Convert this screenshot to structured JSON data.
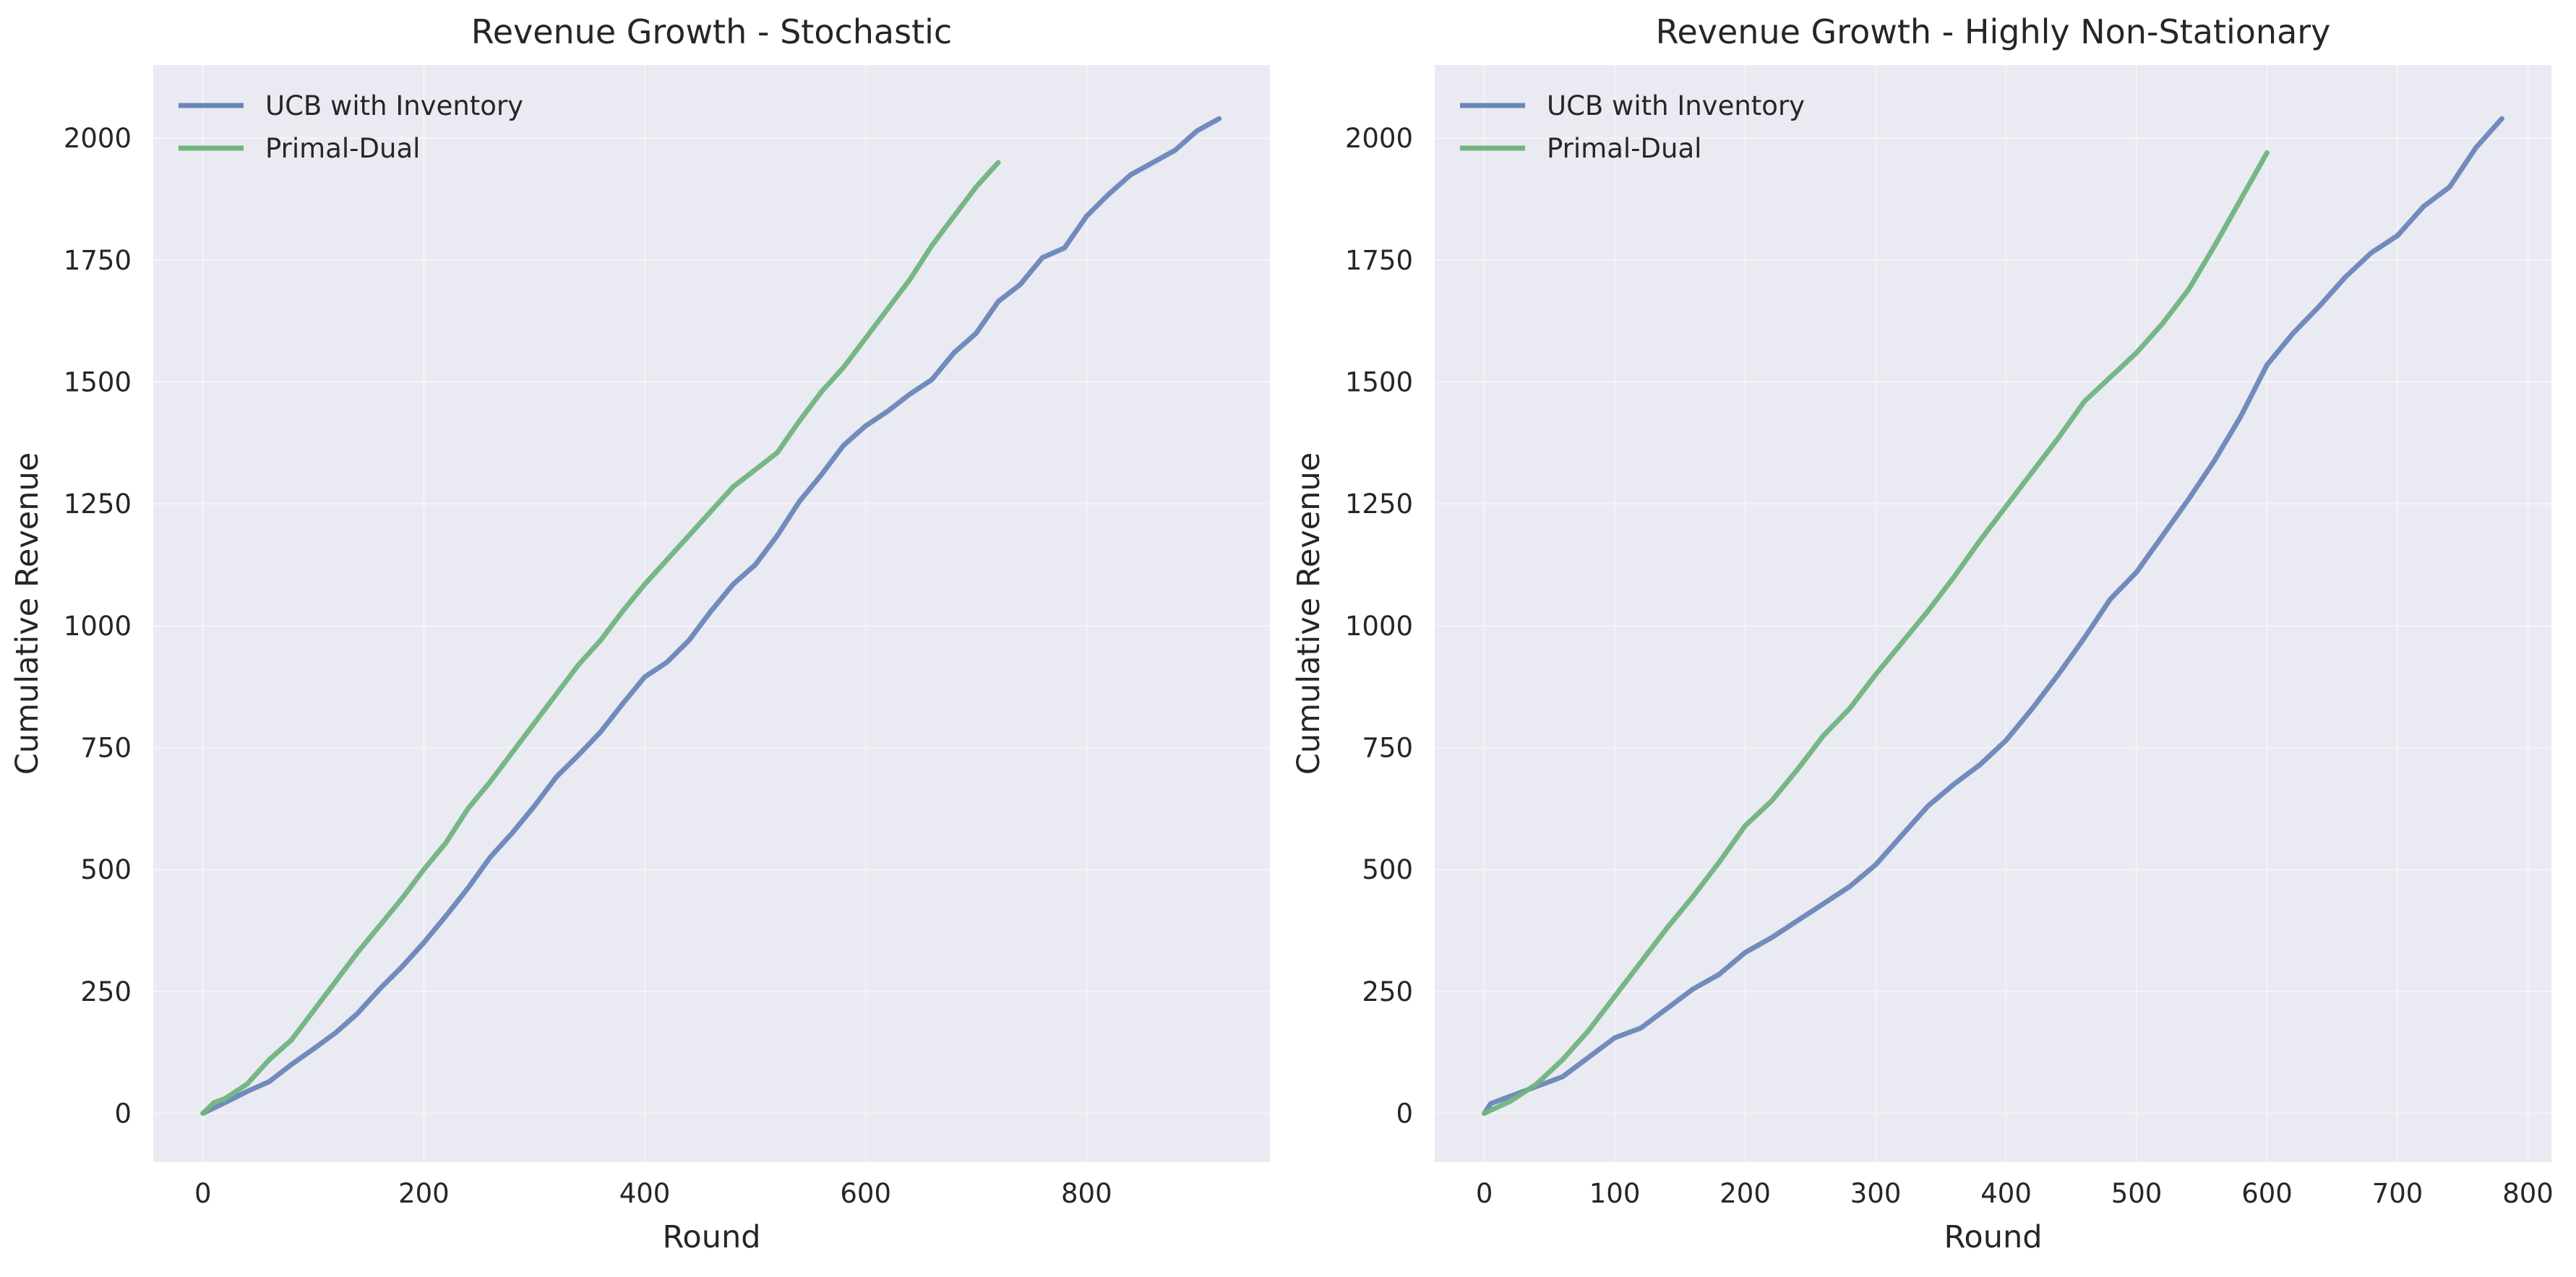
{
  "chart_data": [
    {
      "type": "line",
      "title": "Revenue Growth - Stochastic",
      "xlabel": "Round",
      "ylabel": "Cumulative Revenue",
      "xlim": [
        -45,
        966
      ],
      "ylim": [
        -100,
        2150
      ],
      "xticks": [
        0,
        200,
        400,
        600,
        800
      ],
      "yticks": [
        0,
        250,
        500,
        750,
        1000,
        1250,
        1500,
        1750,
        2000
      ],
      "grid": true,
      "legend_position": "top-left",
      "series": [
        {
          "name": "UCB with Inventory",
          "color": "#6a86b9",
          "points": [
            [
              0,
              0
            ],
            [
              20,
              22
            ],
            [
              40,
              45
            ],
            [
              60,
              65
            ],
            [
              80,
              100
            ],
            [
              100,
              132
            ],
            [
              120,
              165
            ],
            [
              140,
              205
            ],
            [
              160,
              255
            ],
            [
              180,
              300
            ],
            [
              200,
              350
            ],
            [
              220,
              405
            ],
            [
              240,
              462
            ],
            [
              260,
              525
            ],
            [
              280,
              575
            ],
            [
              300,
              630
            ],
            [
              320,
              690
            ],
            [
              340,
              735
            ],
            [
              360,
              782
            ],
            [
              380,
              840
            ],
            [
              400,
              895
            ],
            [
              420,
              925
            ],
            [
              440,
              970
            ],
            [
              460,
              1030
            ],
            [
              480,
              1085
            ],
            [
              500,
              1125
            ],
            [
              520,
              1185
            ],
            [
              540,
              1255
            ],
            [
              560,
              1310
            ],
            [
              580,
              1370
            ],
            [
              600,
              1410
            ],
            [
              620,
              1440
            ],
            [
              640,
              1475
            ],
            [
              660,
              1505
            ],
            [
              680,
              1560
            ],
            [
              700,
              1600
            ],
            [
              720,
              1665
            ],
            [
              740,
              1700
            ],
            [
              760,
              1755
            ],
            [
              780,
              1775
            ],
            [
              800,
              1840
            ],
            [
              820,
              1885
            ],
            [
              840,
              1925
            ],
            [
              860,
              1950
            ],
            [
              880,
              1975
            ],
            [
              900,
              2015
            ],
            [
              920,
              2040
            ]
          ]
        },
        {
          "name": "Primal-Dual",
          "color": "#70b47e",
          "points": [
            [
              0,
              0
            ],
            [
              10,
              22
            ],
            [
              20,
              30
            ],
            [
              40,
              60
            ],
            [
              60,
              110
            ],
            [
              80,
              150
            ],
            [
              100,
              210
            ],
            [
              120,
              270
            ],
            [
              140,
              330
            ],
            [
              160,
              385
            ],
            [
              180,
              440
            ],
            [
              200,
              500
            ],
            [
              220,
              555
            ],
            [
              240,
              625
            ],
            [
              260,
              680
            ],
            [
              280,
              740
            ],
            [
              300,
              800
            ],
            [
              320,
              860
            ],
            [
              340,
              920
            ],
            [
              360,
              970
            ],
            [
              380,
              1030
            ],
            [
              400,
              1085
            ],
            [
              420,
              1135
            ],
            [
              440,
              1185
            ],
            [
              460,
              1235
            ],
            [
              480,
              1285
            ],
            [
              500,
              1320
            ],
            [
              520,
              1355
            ],
            [
              540,
              1420
            ],
            [
              560,
              1480
            ],
            [
              580,
              1530
            ],
            [
              600,
              1590
            ],
            [
              620,
              1650
            ],
            [
              640,
              1710
            ],
            [
              660,
              1780
            ],
            [
              680,
              1840
            ],
            [
              700,
              1900
            ],
            [
              720,
              1950
            ]
          ]
        }
      ]
    },
    {
      "type": "line",
      "title": "Revenue Growth - Highly Non-Stationary",
      "xlabel": "Round",
      "ylabel": "Cumulative Revenue",
      "xlim": [
        -38,
        818
      ],
      "ylim": [
        -100,
        2150
      ],
      "xticks": [
        0,
        100,
        200,
        300,
        400,
        500,
        600,
        700,
        800
      ],
      "yticks": [
        0,
        250,
        500,
        750,
        1000,
        1250,
        1500,
        1750,
        2000
      ],
      "grid": true,
      "legend_position": "top-left",
      "series": [
        {
          "name": "UCB with Inventory",
          "color": "#6a86b9",
          "points": [
            [
              0,
              0
            ],
            [
              5,
              20
            ],
            [
              20,
              35
            ],
            [
              40,
              55
            ],
            [
              60,
              75
            ],
            [
              80,
              115
            ],
            [
              100,
              155
            ],
            [
              120,
              175
            ],
            [
              140,
              215
            ],
            [
              160,
              255
            ],
            [
              180,
              285
            ],
            [
              200,
              330
            ],
            [
              220,
              360
            ],
            [
              240,
              395
            ],
            [
              260,
              430
            ],
            [
              280,
              465
            ],
            [
              300,
              510
            ],
            [
              320,
              570
            ],
            [
              340,
              630
            ],
            [
              360,
              675
            ],
            [
              380,
              715
            ],
            [
              400,
              765
            ],
            [
              420,
              830
            ],
            [
              440,
              900
            ],
            [
              460,
              975
            ],
            [
              480,
              1055
            ],
            [
              500,
              1110
            ],
            [
              520,
              1185
            ],
            [
              540,
              1260
            ],
            [
              560,
              1340
            ],
            [
              580,
              1430
            ],
            [
              600,
              1535
            ],
            [
              620,
              1600
            ],
            [
              640,
              1655
            ],
            [
              660,
              1715
            ],
            [
              680,
              1765
            ],
            [
              700,
              1800
            ],
            [
              720,
              1860
            ],
            [
              740,
              1900
            ],
            [
              760,
              1980
            ],
            [
              780,
              2040
            ]
          ]
        },
        {
          "name": "Primal-Dual",
          "color": "#70b47e",
          "points": [
            [
              0,
              0
            ],
            [
              20,
              25
            ],
            [
              40,
              60
            ],
            [
              60,
              110
            ],
            [
              80,
              170
            ],
            [
              100,
              240
            ],
            [
              120,
              310
            ],
            [
              140,
              380
            ],
            [
              160,
              445
            ],
            [
              180,
              515
            ],
            [
              200,
              590
            ],
            [
              220,
              640
            ],
            [
              240,
              705
            ],
            [
              260,
              775
            ],
            [
              280,
              830
            ],
            [
              300,
              900
            ],
            [
              320,
              965
            ],
            [
              340,
              1030
            ],
            [
              360,
              1100
            ],
            [
              380,
              1175
            ],
            [
              400,
              1245
            ],
            [
              420,
              1315
            ],
            [
              440,
              1385
            ],
            [
              460,
              1460
            ],
            [
              480,
              1510
            ],
            [
              500,
              1560
            ],
            [
              520,
              1620
            ],
            [
              540,
              1690
            ],
            [
              560,
              1780
            ],
            [
              580,
              1875
            ],
            [
              600,
              1970
            ]
          ]
        }
      ]
    }
  ]
}
